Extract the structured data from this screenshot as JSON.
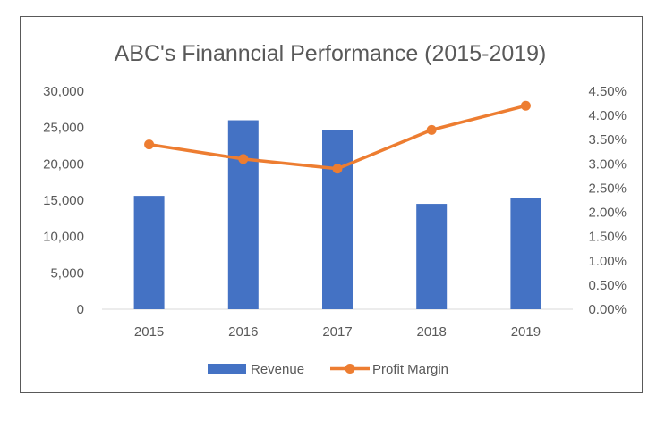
{
  "chart_data": {
    "type": "bar",
    "title": "ABC's Finanncial Performance (2015-2019)",
    "categories": [
      "2015",
      "2016",
      "2017",
      "2018",
      "2019"
    ],
    "series": [
      {
        "name": "Revenue",
        "kind": "bar",
        "axis": "primary",
        "color": "#4472C4",
        "values": [
          15600,
          26000,
          24700,
          14500,
          15300
        ]
      },
      {
        "name": "Profit Margin",
        "kind": "line",
        "axis": "secondary",
        "color": "#ED7D31",
        "values": [
          3.4,
          3.1,
          2.9,
          3.7,
          4.2
        ],
        "unit": "%"
      }
    ],
    "y_primary": {
      "min": 0,
      "max": 30000,
      "step": 5000,
      "tick_labels": [
        "0",
        "5,000",
        "10,000",
        "15,000",
        "20,000",
        "25,000",
        "30,000"
      ]
    },
    "y_secondary": {
      "min": 0,
      "max": 4.5,
      "step": 0.5,
      "tick_labels": [
        "0.00%",
        "0.50%",
        "1.00%",
        "1.50%",
        "2.00%",
        "2.50%",
        "3.00%",
        "3.50%",
        "4.00%",
        "4.50%"
      ]
    },
    "xlabel": "",
    "ylabel": "",
    "grid": false,
    "legend": "bottom"
  }
}
